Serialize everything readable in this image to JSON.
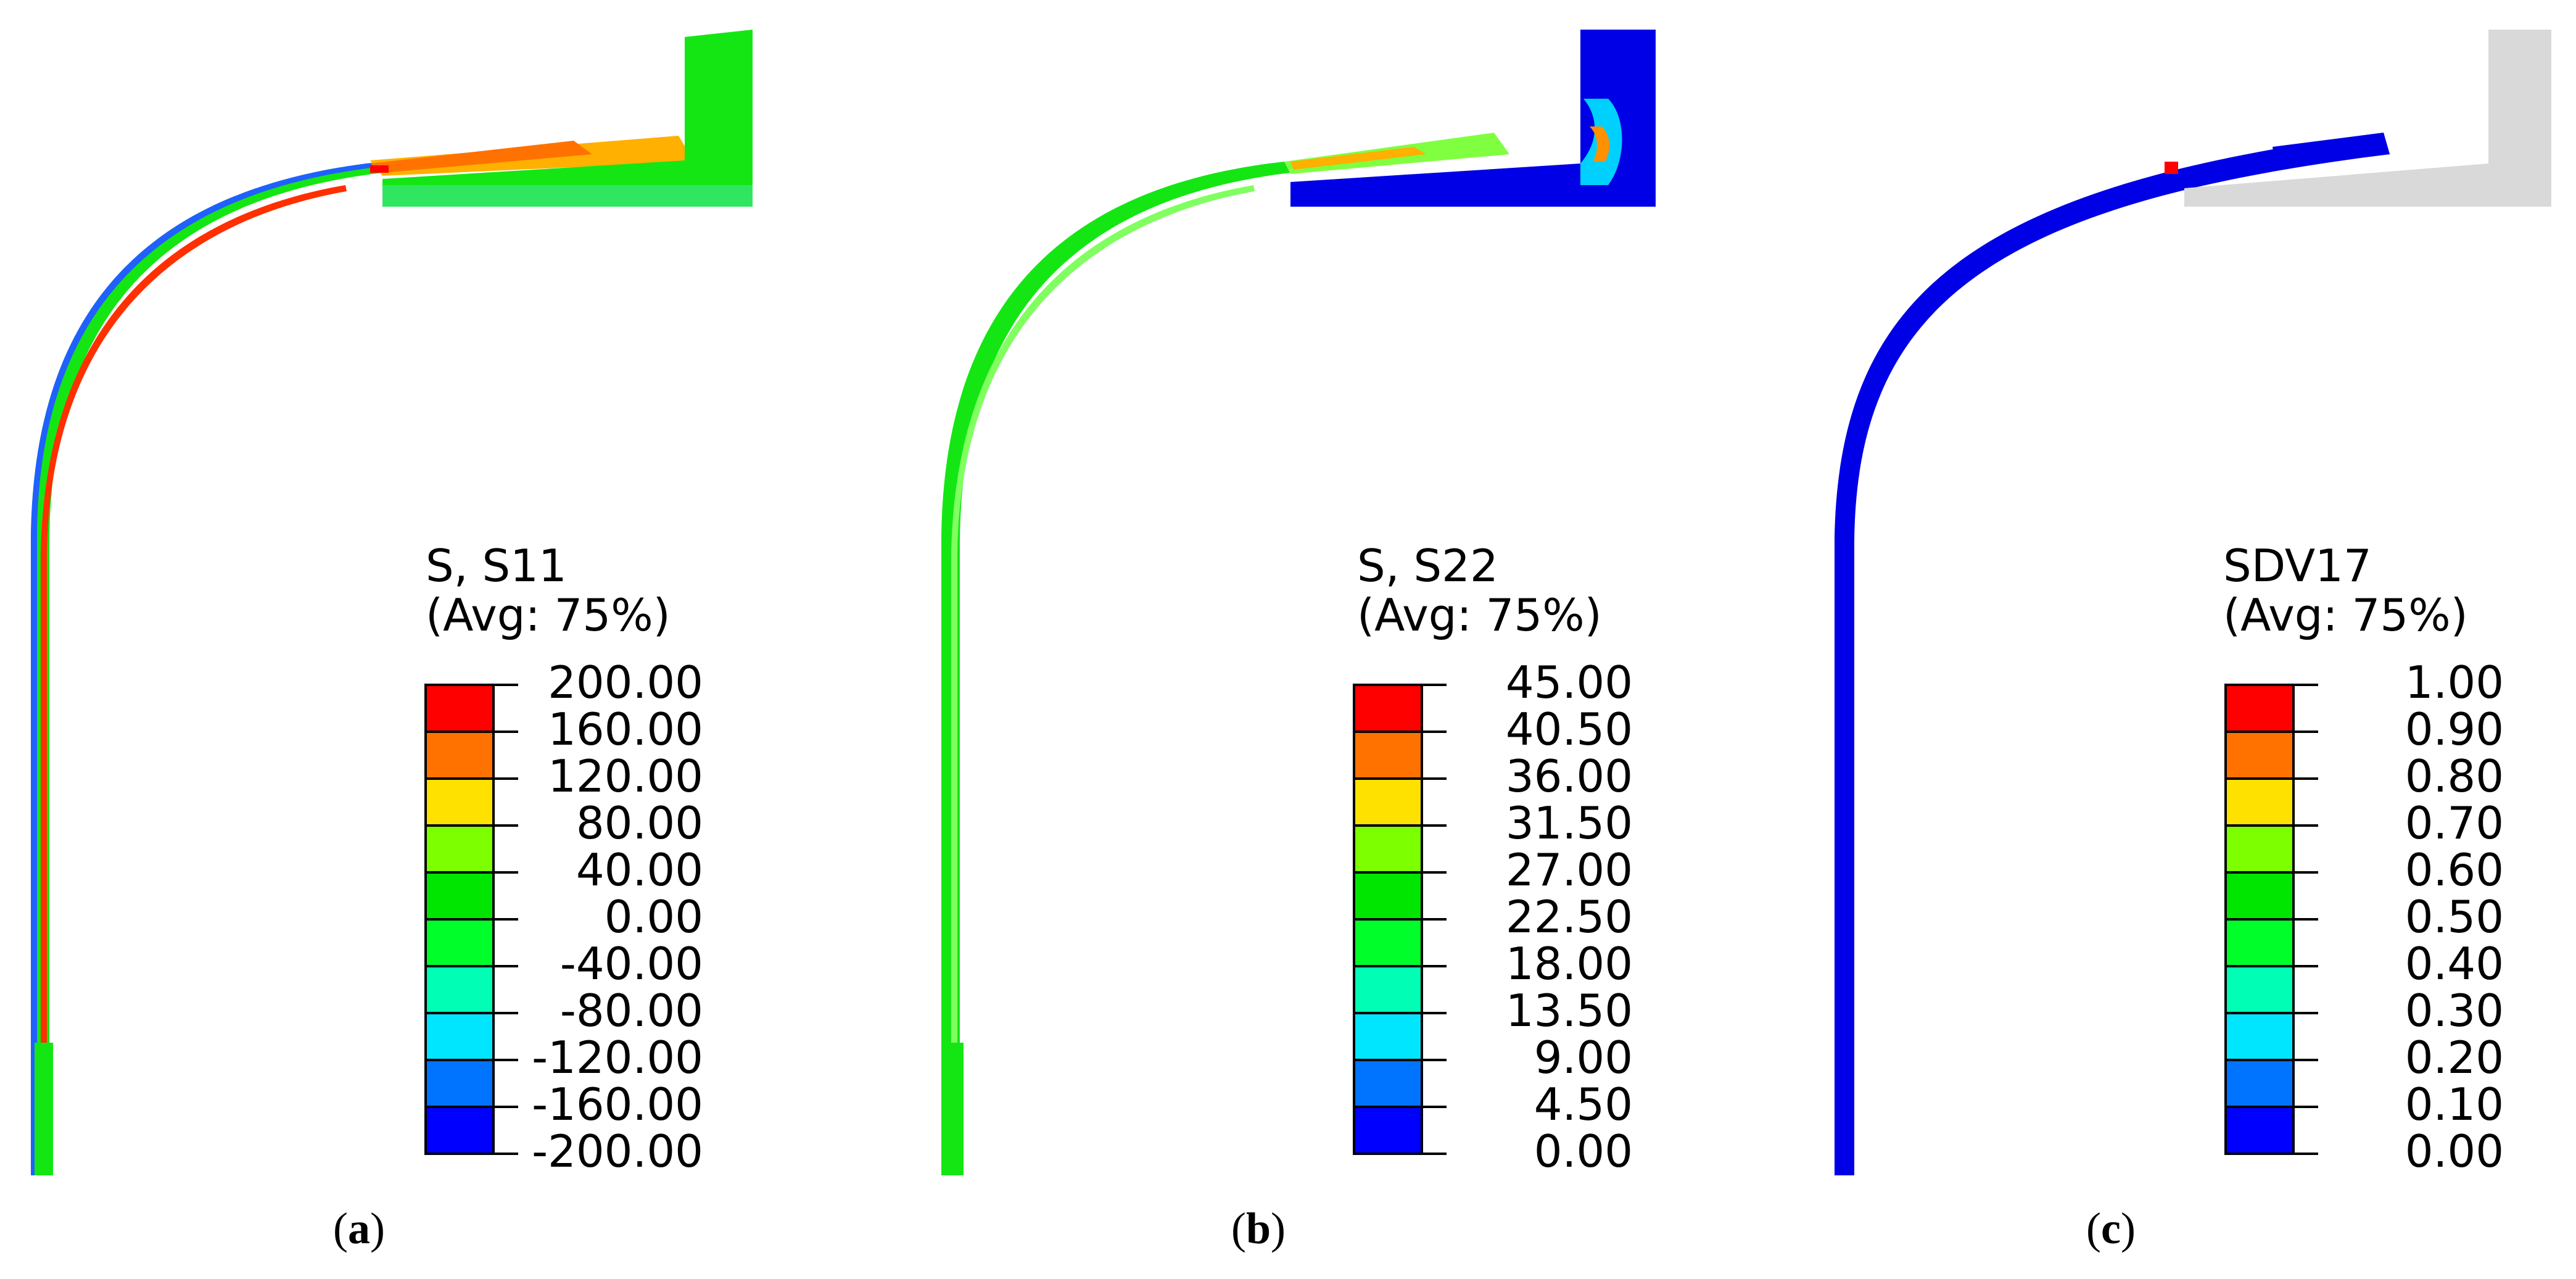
{
  "legend_colors": [
    "#ff0000",
    "#ff7200",
    "#ffe100",
    "#7dff00",
    "#00e600",
    "#00ff2a",
    "#00ffb4",
    "#00e6ff",
    "#0073ff",
    "#0000ff"
  ],
  "part_colors": {
    "blue": "#0000e6",
    "green": "#14e614",
    "grey": "#d9d9d9",
    "red": "#ff0000",
    "orange": "#ff8000"
  },
  "panels": [
    {
      "id": "a",
      "caption_letter": "a",
      "legend_title_1": "S, S11",
      "legend_title_2": "(Avg: 75%)",
      "ticks": [
        "200.00",
        "160.00",
        "120.00",
        "80.00",
        "40.00",
        "0.00",
        "-40.00",
        "-80.00",
        "-120.00",
        "-160.00",
        "-200.00"
      ]
    },
    {
      "id": "b",
      "caption_letter": "b",
      "legend_title_1": "S, S22",
      "legend_title_2": "(Avg: 75%)",
      "ticks": [
        "45.00",
        "40.50",
        "36.00",
        "31.50",
        "27.00",
        "22.50",
        "18.00",
        "13.50",
        "9.00",
        "4.50",
        "0.00"
      ]
    },
    {
      "id": "c",
      "caption_letter": "c",
      "legend_title_1": "SDV17",
      "legend_title_2": "(Avg: 75%)",
      "ticks": [
        "1.00",
        "0.90",
        "0.80",
        "0.70",
        "0.60",
        "0.50",
        "0.40",
        "0.30",
        "0.20",
        "0.10",
        "0.00"
      ]
    }
  ]
}
